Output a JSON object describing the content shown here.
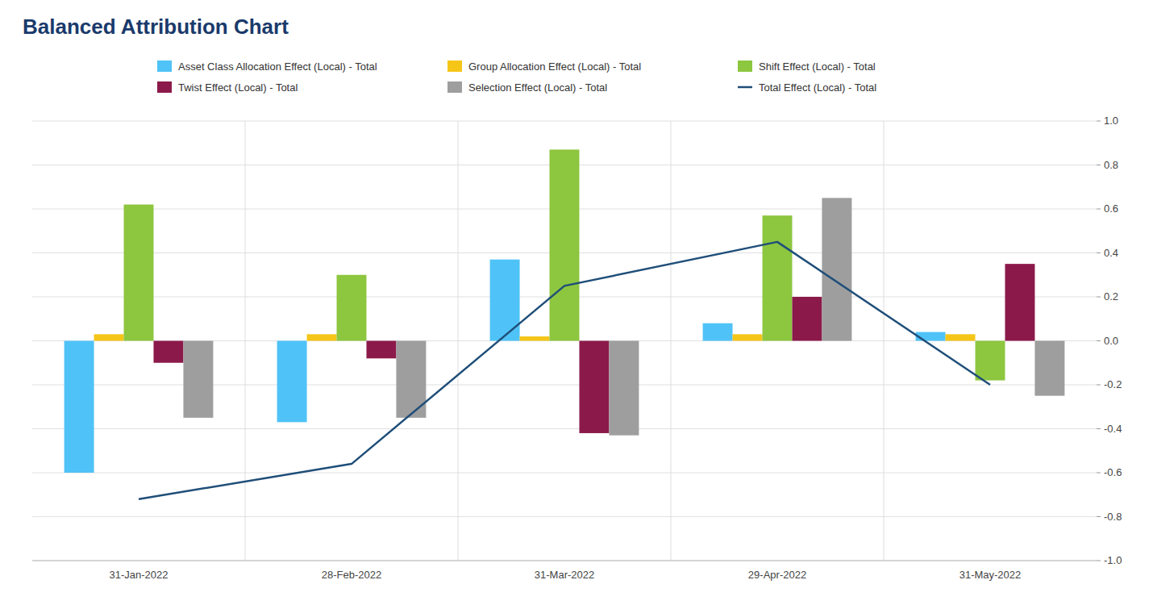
{
  "chart_data": {
    "type": "bar",
    "title": "Balanced Attribution Chart",
    "categories": [
      "31-Jan-2022",
      "28-Feb-2022",
      "31-Mar-2022",
      "29-Apr-2022",
      "31-May-2022"
    ],
    "series": [
      {
        "name": "Asset Class Allocation Effect (Local) - Total",
        "type": "bar",
        "color": "#4fc3f7",
        "values": [
          -0.6,
          -0.37,
          0.37,
          0.08,
          0.04
        ]
      },
      {
        "name": "Group Allocation Effect (Local) - Total",
        "type": "bar",
        "color": "#f5c518",
        "values": [
          0.03,
          0.03,
          0.02,
          0.03,
          0.03
        ]
      },
      {
        "name": "Shift Effect (Local) - Total",
        "type": "bar",
        "color": "#8dc63f",
        "values": [
          0.62,
          0.3,
          0.87,
          0.57,
          -0.18
        ]
      },
      {
        "name": "Twist Effect (Local) - Total",
        "type": "bar",
        "color": "#8b1a4a",
        "values": [
          -0.1,
          -0.08,
          -0.42,
          0.2,
          0.35
        ]
      },
      {
        "name": "Selection Effect (Local) - Total",
        "type": "bar",
        "color": "#9e9e9e",
        "values": [
          -0.35,
          -0.35,
          -0.43,
          0.65,
          -0.25
        ]
      },
      {
        "name": "Total Effect (Local) - Total",
        "type": "line",
        "color": "#1f4e79",
        "values": [
          -0.72,
          -0.56,
          0.25,
          0.45,
          -0.2
        ]
      }
    ],
    "ylim": [
      -1.0,
      1.0
    ],
    "yticks": [
      {
        "value": -1.0,
        "label": "-1.0"
      },
      -0.8,
      -0.6,
      -0.4,
      -0.2,
      {
        "value": 0.0,
        "label": "0.0"
      },
      0.2,
      0.4,
      0.6,
      0.8,
      {
        "value": 1.0,
        "label": "1.0"
      }
    ],
    "grid": true,
    "legend": "top"
  }
}
